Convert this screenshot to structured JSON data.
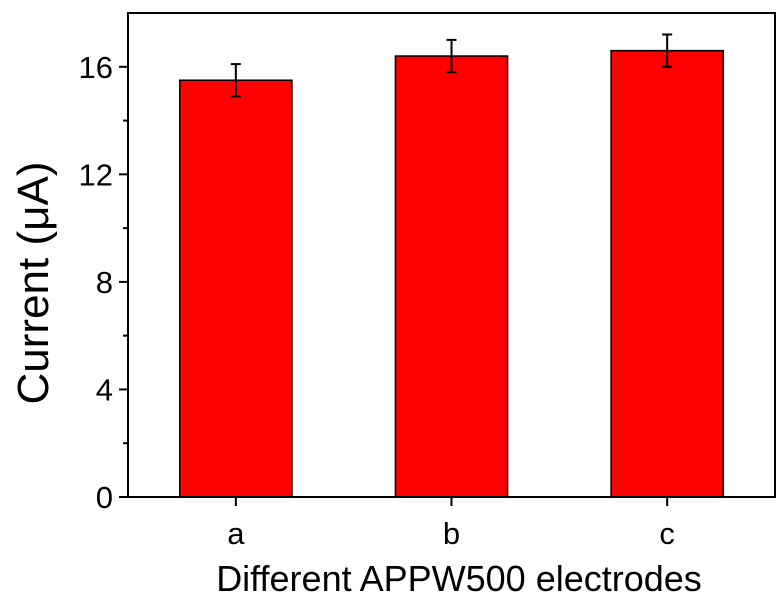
{
  "chart_data": {
    "type": "bar",
    "title": "",
    "xlabel": "Different APPW500 electrodes",
    "ylabel": "Current (μA)",
    "categories": [
      "a",
      "b",
      "c"
    ],
    "values": [
      15.5,
      16.4,
      16.6
    ],
    "errors": [
      0.6,
      0.6,
      0.6
    ],
    "ylim": [
      0,
      18
    ],
    "yticks": [
      0,
      4,
      8,
      12,
      16
    ],
    "yticks_minor": [
      2,
      6,
      10,
      14
    ],
    "grid": false,
    "legend": "none",
    "colors": {
      "bar_fill": "#ff0000",
      "bar_stroke": "#000000",
      "axis": "#000000"
    }
  }
}
